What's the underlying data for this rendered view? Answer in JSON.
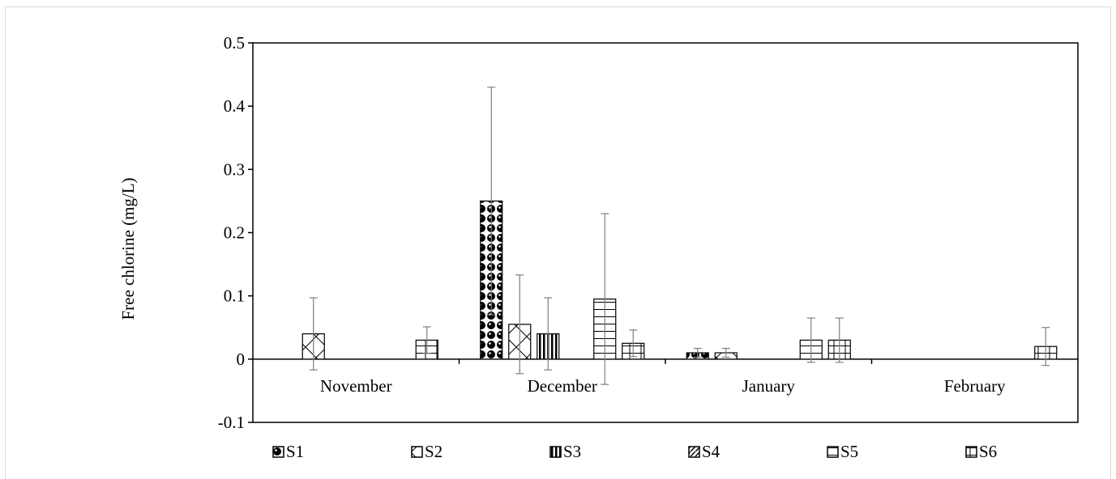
{
  "chart_data": {
    "type": "bar",
    "title": "",
    "xlabel": "",
    "ylabel": "Free chlorine (mg/L)",
    "ylim": [
      -0.1,
      0.5
    ],
    "yticks": [
      "-0.1",
      "0",
      "0.1",
      "0.2",
      "0.3",
      "0.4",
      "0.5"
    ],
    "grid": false,
    "legend_position": "bottom",
    "categories": [
      "November",
      "December",
      "January",
      "February"
    ],
    "series": [
      {
        "name": "S1",
        "pattern": "dots",
        "values": [
          0,
          0.25,
          0.01,
          0
        ],
        "errors": [
          0,
          0.18,
          0.007,
          0
        ]
      },
      {
        "name": "S2",
        "pattern": "crosshatch",
        "values": [
          0.04,
          0.055,
          0.01,
          0
        ],
        "errors": [
          0.057,
          0.078,
          0.007,
          0
        ]
      },
      {
        "name": "S3",
        "pattern": "vertical",
        "values": [
          0,
          0.04,
          0,
          0
        ],
        "errors": [
          0,
          0.057,
          0,
          0
        ]
      },
      {
        "name": "S4",
        "pattern": "diagonal",
        "values": [
          0,
          0,
          0,
          0
        ],
        "errors": [
          0,
          0,
          0,
          0
        ]
      },
      {
        "name": "S5",
        "pattern": "horizontal",
        "values": [
          0,
          0.095,
          0.03,
          0
        ],
        "errors": [
          0,
          0.135,
          0.035,
          0
        ]
      },
      {
        "name": "S6",
        "pattern": "bricks",
        "values": [
          0.03,
          0.025,
          0.03,
          0.02
        ],
        "errors": [
          0.021,
          0.021,
          0.035,
          0.03
        ]
      }
    ]
  }
}
